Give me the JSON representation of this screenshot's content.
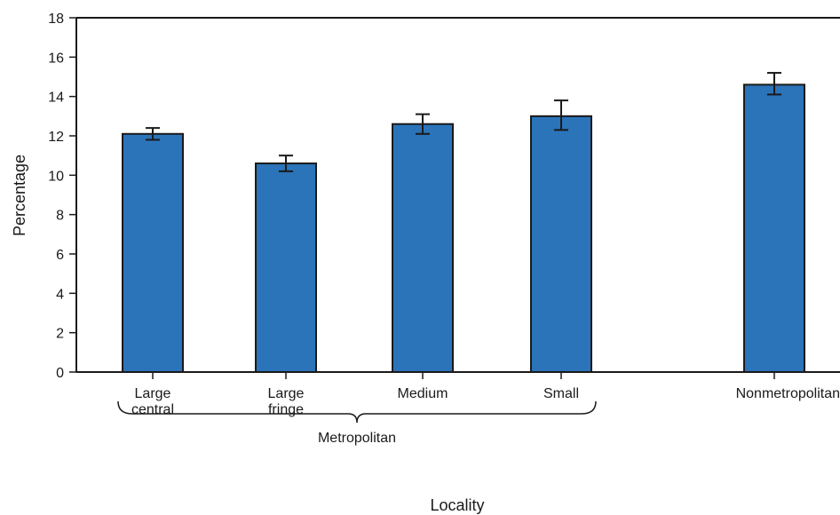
{
  "chart_data": {
    "type": "bar",
    "categories": [
      [
        "Large",
        "central"
      ],
      [
        "Large",
        "fringe"
      ],
      [
        "Medium"
      ],
      [
        "Small"
      ],
      [
        "Nonmetropolitan"
      ]
    ],
    "values": [
      12.1,
      10.6,
      12.6,
      13.0,
      14.6
    ],
    "error_low": [
      11.8,
      10.2,
      12.1,
      12.3,
      14.1
    ],
    "error_high": [
      12.4,
      11.0,
      13.1,
      13.8,
      15.2
    ],
    "ylim": [
      0,
      18
    ],
    "yticks": [
      0,
      2,
      4,
      6,
      8,
      10,
      12,
      14,
      16,
      18
    ],
    "ylabel": "Percentage",
    "xlabel": "Locality",
    "group_label": "Metropolitan",
    "bar_color": "#2b74b9",
    "grid": false
  }
}
